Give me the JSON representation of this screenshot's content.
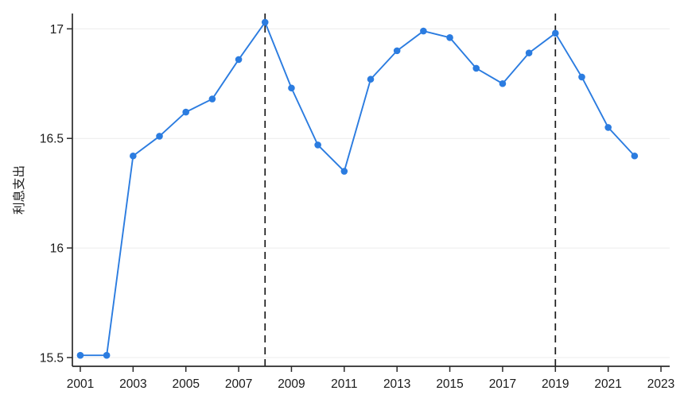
{
  "figure": {
    "background": "#ffffff"
  },
  "chart_data": {
    "type": "line",
    "title": "",
    "xlabel": "",
    "ylabel": "利息支出",
    "x": [
      2001,
      2002,
      2003,
      2004,
      2005,
      2006,
      2007,
      2008,
      2009,
      2010,
      2011,
      2012,
      2013,
      2014,
      2015,
      2016,
      2017,
      2018,
      2019,
      2020,
      2021,
      2022
    ],
    "values": [
      15.51,
      15.51,
      16.42,
      16.51,
      16.62,
      16.68,
      16.86,
      17.03,
      16.73,
      16.47,
      16.35,
      16.77,
      16.9,
      16.99,
      16.96,
      16.82,
      16.75,
      16.89,
      16.98,
      16.78,
      16.55,
      16.42
    ],
    "series_name": "利息支出",
    "xticks": [
      2001,
      2003,
      2005,
      2007,
      2009,
      2011,
      2013,
      2015,
      2017,
      2019,
      2021,
      2023
    ],
    "xtick_labels": [
      "2001",
      "2003",
      "2005",
      "2007",
      "2009",
      "2011",
      "2013",
      "2015",
      "2017",
      "2019",
      "2021",
      "2023"
    ],
    "yticks": [
      15.5,
      16,
      16.5,
      17
    ],
    "ytick_labels": [
      "15.5",
      "16",
      "16.5",
      "17"
    ],
    "xlim": [
      2000.7,
      2023.33
    ],
    "ylim": [
      15.46,
      17.07
    ],
    "grid": "horizontal-only",
    "legend": "none",
    "vlines": [
      2008,
      2019
    ],
    "colors": {
      "line": "#2b7ce0",
      "marker": "#2b7ce0",
      "vline": "#1a1a1a",
      "axis": "#2b2b2b",
      "tick_label": "#1a1a1a",
      "grid": "#ececec",
      "background": "#ffffff"
    },
    "marker": "circle",
    "marker_radius": 4.3,
    "line_width": 1.9
  }
}
